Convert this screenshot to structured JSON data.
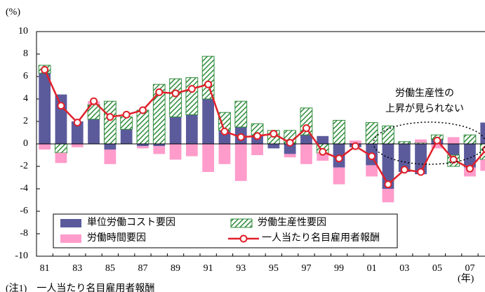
{
  "chart_data": {
    "type": "bar",
    "y_unit": "(%)",
    "x_unit": "(年)",
    "categories": [
      "81",
      null,
      "83",
      null,
      "85",
      null,
      "87",
      null,
      "89",
      null,
      "91",
      null,
      "93",
      null,
      "95",
      null,
      "97",
      null,
      "99",
      null,
      "01",
      null,
      "03",
      null,
      "05",
      null,
      "07",
      null
    ],
    "series": [
      {
        "name": "単位労働コスト要因",
        "color": "#5b5b9c",
        "values": [
          6.3,
          4.4,
          2.0,
          2.2,
          -0.5,
          1.3,
          -0.2,
          -0.2,
          2.4,
          2.6,
          4.0,
          1.2,
          1.5,
          0.8,
          -0.4,
          -0.9,
          0.8,
          0.7,
          -2.1,
          -0.3,
          -1.9,
          -4.0,
          -2.5,
          -2.7,
          0.4,
          -1.0,
          -2.1,
          1.9
        ]
      },
      {
        "name": "労働生産性要因",
        "color": "#2e8b3a",
        "pattern": "hatch",
        "values": [
          0.7,
          -0.8,
          0.0,
          1.3,
          3.8,
          1.1,
          3.0,
          5.3,
          3.4,
          3.3,
          3.8,
          1.6,
          2.3,
          1.0,
          1.2,
          1.2,
          2.4,
          -0.8,
          2.1,
          0.0,
          1.9,
          1.6,
          0.2,
          0.1,
          0.4,
          -1.0,
          0.8,
          -1.4
        ]
      },
      {
        "name": "労働時間要因",
        "color": "#ff9ccb",
        "values": [
          -0.5,
          -0.9,
          -0.3,
          0.3,
          -1.3,
          0.0,
          -0.2,
          -0.7,
          -1.4,
          -1.1,
          -2.5,
          -1.8,
          -3.3,
          -1.0,
          0.0,
          -0.3,
          -1.8,
          -0.7,
          -1.5,
          0.3,
          -1.0,
          -1.2,
          0.0,
          0.3,
          -0.4,
          0.6,
          -0.8,
          -1.0
        ]
      },
      {
        "name": "一人当たり名目雇用者報酬",
        "color": "#e0202a",
        "type": "line",
        "values": [
          6.6,
          3.4,
          1.9,
          3.8,
          2.4,
          2.6,
          3.0,
          4.6,
          4.5,
          4.9,
          5.3,
          1.1,
          0.6,
          0.7,
          0.9,
          0.1,
          1.4,
          -0.7,
          -1.3,
          -0.2,
          -1.1,
          -3.6,
          -2.3,
          -2.5,
          0.3,
          -1.4,
          -2.2,
          -0.5
        ]
      }
    ],
    "ylim": [
      -10,
      10
    ],
    "yticks": [
      -10,
      -8,
      -6,
      -4,
      -2,
      0,
      2,
      4,
      6,
      8,
      10
    ],
    "annotation": [
      "労働生産性の",
      "上昇が見られない"
    ],
    "footnote": "(注1)　一人当たり名目雇用者報酬",
    "legend": "lower left"
  }
}
